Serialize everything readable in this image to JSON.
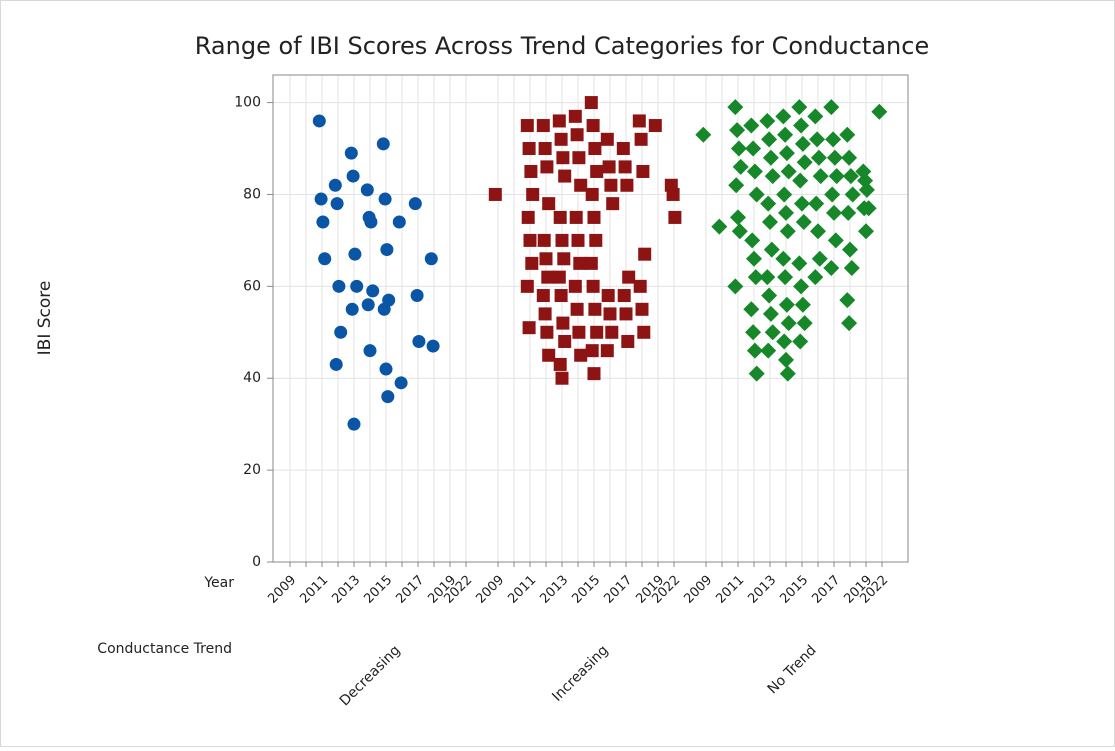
{
  "chart_data": {
    "type": "scatter",
    "title": "Range of IBI Scores Across Trend Categories for Conductance",
    "y_label": "IBI Score",
    "x_row_label": "Year",
    "group_row_label": "Conductance Trend",
    "ylim": [
      0,
      106
    ],
    "yticks": [
      0,
      20,
      40,
      60,
      80,
      100
    ],
    "grid": true,
    "series": [
      {
        "name": "Decreasing",
        "color": "#0a55a5",
        "marker": "circle",
        "categories": [
          "2009",
          null,
          "2011",
          null,
          "2013",
          null,
          "2015",
          null,
          "2017",
          null,
          "2019",
          "2022"
        ],
        "values": [
          [],
          [],
          [
            96,
            79,
            74,
            66
          ],
          [
            82,
            78,
            60,
            50,
            43
          ],
          [
            89,
            84,
            67,
            60,
            55,
            30
          ],
          [
            81,
            75,
            74,
            59,
            56,
            46
          ],
          [
            91,
            79,
            68,
            57,
            55,
            42,
            36
          ],
          [
            74,
            39
          ],
          [
            78,
            58,
            48
          ],
          [
            66,
            47
          ],
          [],
          []
        ]
      },
      {
        "name": "Increasing",
        "color": "#8e1414",
        "marker": "square",
        "categories": [
          "2009",
          null,
          "2011",
          null,
          "2013",
          null,
          "2015",
          null,
          "2017",
          null,
          "2019",
          "2022"
        ],
        "values": [
          [
            80
          ],
          [],
          [
            95,
            90,
            85,
            80,
            75,
            70,
            65,
            60,
            51
          ],
          [
            95,
            90,
            86,
            78,
            70,
            66,
            62,
            58,
            54,
            50,
            45
          ],
          [
            96,
            92,
            88,
            84,
            75,
            70,
            66,
            62,
            58,
            52,
            48,
            43,
            40
          ],
          [
            97,
            93,
            88,
            82,
            75,
            70,
            65,
            60,
            55,
            50,
            45
          ],
          [
            100,
            95,
            90,
            85,
            80,
            75,
            70,
            65,
            60,
            55,
            50,
            46,
            41
          ],
          [
            92,
            86,
            82,
            78,
            58,
            54,
            50,
            46
          ],
          [
            90,
            86,
            82,
            62,
            58,
            54,
            48
          ],
          [
            96,
            92,
            85,
            67,
            60,
            55,
            50
          ],
          [
            95
          ],
          [
            82,
            80,
            75
          ]
        ]
      },
      {
        "name": "No Trend",
        "color": "#17882a",
        "marker": "diamond",
        "categories": [
          "2009",
          null,
          "2011",
          null,
          "2013",
          null,
          "2015",
          null,
          "2017",
          null,
          "2019",
          "2022"
        ],
        "values": [
          [
            93
          ],
          [
            73
          ],
          [
            99,
            94,
            90,
            86,
            82,
            75,
            72,
            60
          ],
          [
            95,
            90,
            85,
            80,
            70,
            66,
            62,
            55,
            50,
            46,
            41
          ],
          [
            96,
            92,
            88,
            84,
            78,
            74,
            68,
            62,
            58,
            54,
            50,
            46
          ],
          [
            97,
            93,
            89,
            85,
            80,
            76,
            72,
            66,
            62,
            56,
            52,
            48,
            44,
            41
          ],
          [
            99,
            95,
            91,
            87,
            83,
            78,
            74,
            65,
            60,
            56,
            52,
            48
          ],
          [
            97,
            92,
            88,
            84,
            78,
            72,
            66,
            62
          ],
          [
            99,
            92,
            88,
            84,
            80,
            76,
            70,
            64
          ],
          [
            93,
            88,
            84,
            80,
            76,
            68,
            64,
            57,
            52
          ],
          [
            85,
            83,
            81,
            77,
            77,
            72
          ],
          [
            98
          ]
        ]
      }
    ]
  }
}
